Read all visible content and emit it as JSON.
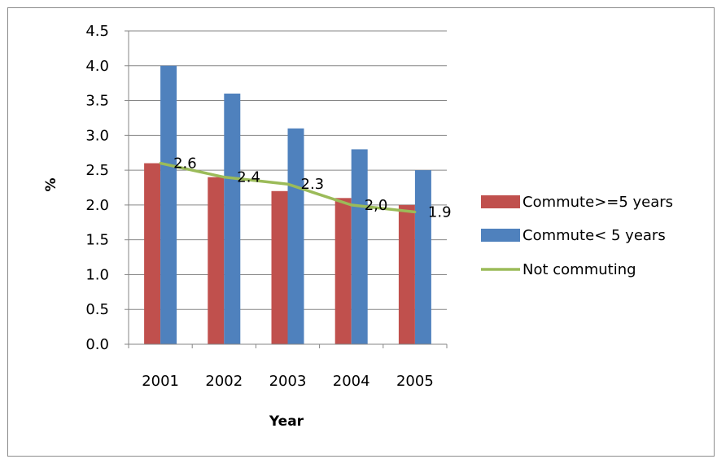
{
  "chart_data": {
    "type": "bar",
    "categories": [
      "2001",
      "2002",
      "2003",
      "2004",
      "2005"
    ],
    "series": [
      {
        "name": "Commute>=5 years",
        "type": "bar",
        "color": "#c0504d",
        "values": [
          2.6,
          2.4,
          2.2,
          2.1,
          2.0
        ]
      },
      {
        "name": "Commute< 5 years",
        "type": "bar",
        "color": "#4f81bd",
        "values": [
          4.0,
          3.6,
          3.1,
          2.8,
          2.5
        ]
      },
      {
        "name": "Not commuting",
        "type": "line",
        "color": "#9bbb59",
        "values": [
          2.6,
          2.4,
          2.3,
          2.0,
          1.9
        ],
        "data_labels": [
          "2.6",
          "2.4",
          "2.3",
          "2,0",
          "1.9"
        ]
      }
    ],
    "y_ticks": [
      "0.0",
      "0.5",
      "1.0",
      "1.5",
      "2.0",
      "2.5",
      "3.0",
      "3.5",
      "4.0",
      "4.5"
    ],
    "xlabel": "Year",
    "ylabel": "%",
    "ylim": [
      0,
      4.5
    ],
    "grid": true,
    "legend": "right"
  }
}
